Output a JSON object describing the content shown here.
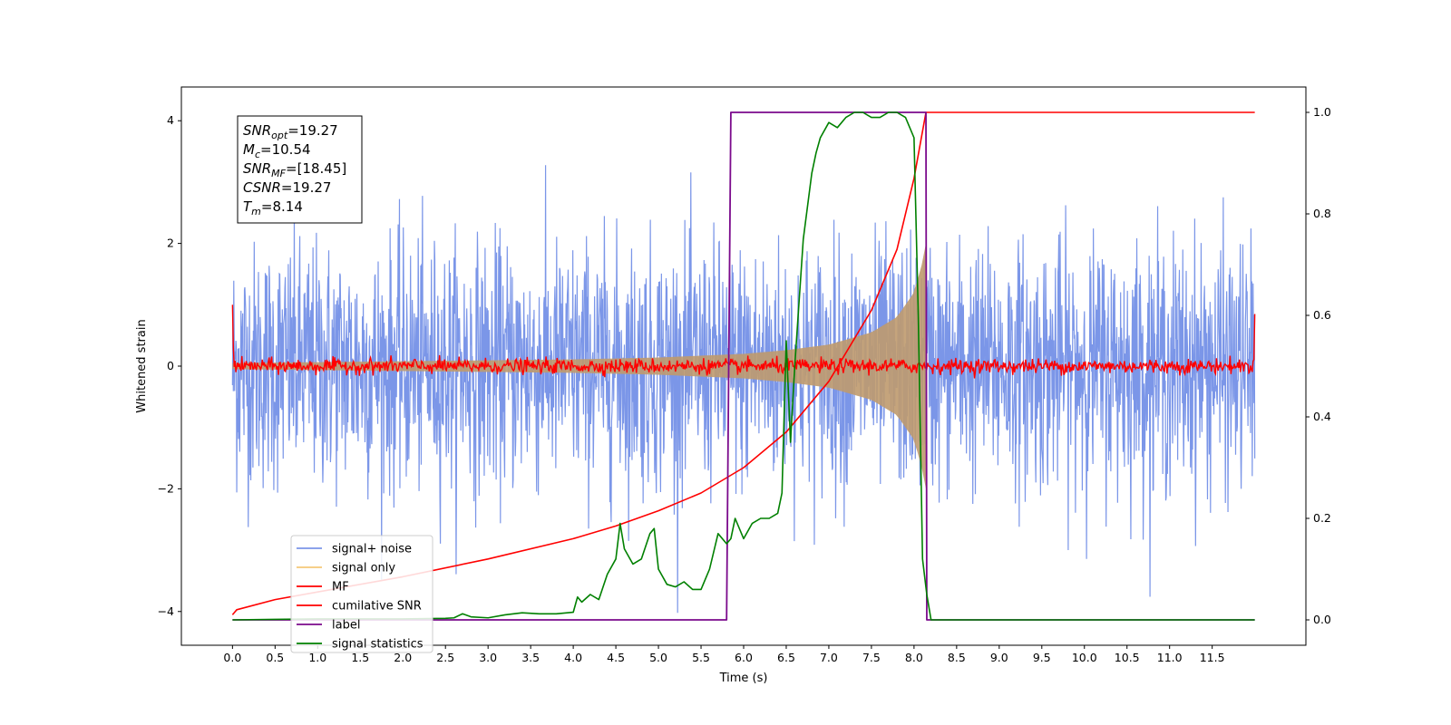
{
  "chart_data": {
    "type": "line",
    "title": "",
    "xlabel": "Time (s)",
    "ylabel": "Whitened strain",
    "y2label": "",
    "xlim": [
      -0.6,
      12.6
    ],
    "ylim": [
      -4.55,
      4.55
    ],
    "y2lim": [
      -0.05,
      1.05
    ],
    "x_ticks": [
      "0.0",
      "0.5",
      "1.0",
      "1.5",
      "2.0",
      "2.5",
      "3.0",
      "3.5",
      "4.0",
      "4.5",
      "5.0",
      "5.5",
      "6.0",
      "6.5",
      "7.0",
      "7.5",
      "8.0",
      "8.5",
      "9.0",
      "9.5",
      "10.0",
      "10.5",
      "11.0",
      "11.5"
    ],
    "y_ticks": [
      "4",
      "2",
      "0",
      "−2",
      "−4"
    ],
    "y2_ticks": [
      "1.0",
      "0.8",
      "0.6",
      "0.4",
      "0.2",
      "0.0"
    ],
    "grid": false,
    "legend_position": "lower-left",
    "info_box": [
      {
        "symbol": "SNR",
        "sub": "opt",
        "value": "=19.27"
      },
      {
        "symbol": "M",
        "sub": "c",
        "value": "=10.54"
      },
      {
        "symbol": "SNR",
        "sub": "MF",
        "value": "=[18.45]"
      },
      {
        "symbol": "CSNR",
        "sub": "",
        "value": "=19.27"
      },
      {
        "symbol": "T",
        "sub": "m",
        "value": "=8.14"
      }
    ],
    "series": [
      {
        "name": "signal+ noise",
        "color": "#7b96e8",
        "axis": "left",
        "noise_sigma": 1.0,
        "x_range": [
          0.0,
          12.0
        ]
      },
      {
        "name": "signal only",
        "color": "#f5c878",
        "axis": "left",
        "x_range": [
          0.0,
          8.14
        ],
        "envelope_x": [
          0,
          2,
          4,
          5,
          6,
          6.5,
          7,
          7.5,
          7.8,
          8.0,
          8.1,
          8.14
        ],
        "envelope_y": [
          0.05,
          0.08,
          0.11,
          0.14,
          0.2,
          0.26,
          0.35,
          0.55,
          0.8,
          1.2,
          1.7,
          2.0
        ]
      },
      {
        "name": "MF",
        "color": "#ff0000",
        "axis": "left",
        "noise_sigma": 0.06,
        "x_range": [
          0.0,
          12.0
        ]
      },
      {
        "name": "cumilative SNR",
        "color": "#ff0000",
        "axis": "right",
        "x": [
          0.0,
          0.05,
          0.5,
          1.0,
          2.0,
          3.0,
          4.0,
          4.5,
          5.0,
          5.5,
          6.0,
          6.5,
          7.0,
          7.5,
          7.8,
          8.0,
          8.14,
          8.15,
          12.0
        ],
        "values": [
          0.01,
          0.02,
          0.04,
          0.055,
          0.085,
          0.12,
          0.16,
          0.185,
          0.215,
          0.25,
          0.3,
          0.37,
          0.47,
          0.61,
          0.73,
          0.87,
          1.0,
          1.0,
          1.0
        ]
      },
      {
        "name": "label",
        "color": "#7b0a8c",
        "axis": "right",
        "x": [
          0.0,
          5.8,
          5.85,
          8.14,
          8.15,
          12.0
        ],
        "values": [
          0.0,
          0.0,
          1.0,
          1.0,
          0.0,
          0.0
        ]
      },
      {
        "name": "signal statistics",
        "color": "#008000",
        "axis": "right",
        "x": [
          0.0,
          0.5,
          1.0,
          1.5,
          2.0,
          2.5,
          2.6,
          2.7,
          2.8,
          3.0,
          3.2,
          3.4,
          3.6,
          3.8,
          4.0,
          4.05,
          4.1,
          4.2,
          4.3,
          4.4,
          4.5,
          4.55,
          4.6,
          4.7,
          4.8,
          4.9,
          4.95,
          5.0,
          5.1,
          5.2,
          5.3,
          5.4,
          5.5,
          5.6,
          5.7,
          5.8,
          5.85,
          5.9,
          6.0,
          6.1,
          6.2,
          6.3,
          6.4,
          6.45,
          6.5,
          6.55,
          6.6,
          6.7,
          6.8,
          6.85,
          6.9,
          7.0,
          7.1,
          7.2,
          7.3,
          7.4,
          7.5,
          7.6,
          7.7,
          7.8,
          7.9,
          8.0,
          8.05,
          8.1,
          8.15,
          8.2,
          12.0
        ],
        "values": [
          0.0,
          0.001,
          0.002,
          0.002,
          0.002,
          0.003,
          0.004,
          0.012,
          0.006,
          0.004,
          0.01,
          0.014,
          0.012,
          0.012,
          0.015,
          0.045,
          0.035,
          0.05,
          0.04,
          0.09,
          0.12,
          0.19,
          0.14,
          0.11,
          0.12,
          0.17,
          0.18,
          0.1,
          0.07,
          0.065,
          0.075,
          0.06,
          0.06,
          0.1,
          0.17,
          0.15,
          0.16,
          0.2,
          0.16,
          0.19,
          0.2,
          0.2,
          0.21,
          0.25,
          0.55,
          0.35,
          0.5,
          0.75,
          0.88,
          0.92,
          0.95,
          0.98,
          0.97,
          0.99,
          1.0,
          1.0,
          0.99,
          0.99,
          1.0,
          1.0,
          0.99,
          0.95,
          0.6,
          0.12,
          0.05,
          0.0,
          0.0
        ]
      }
    ]
  }
}
